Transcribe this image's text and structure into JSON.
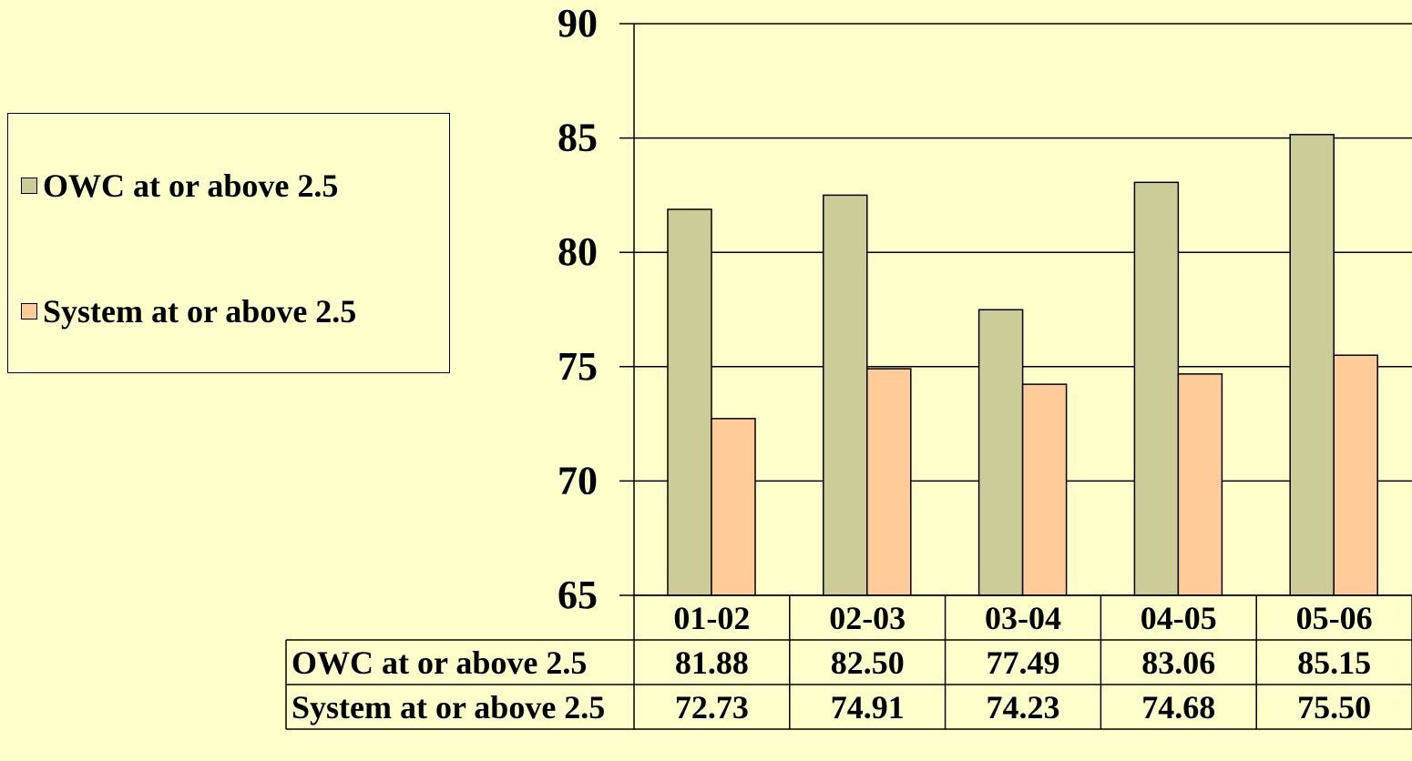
{
  "chart_data": {
    "type": "bar",
    "categories": [
      "01-02",
      "02-03",
      "03-04",
      "04-05",
      "05-06"
    ],
    "series": [
      {
        "name": "OWC at or above 2.5",
        "values": [
          81.88,
          82.5,
          77.49,
          83.06,
          85.15
        ],
        "labels": [
          "81.88",
          "82.50",
          "77.49",
          "83.06",
          "85.15"
        ],
        "color": "#CCCC99"
      },
      {
        "name": "System at or above 2.5",
        "values": [
          72.73,
          74.91,
          74.23,
          74.68,
          75.5
        ],
        "labels": [
          "72.73",
          "74.91",
          "74.23",
          "74.68",
          "75.50"
        ],
        "color": "#FFCC99"
      }
    ],
    "ylim": [
      65,
      90
    ],
    "yticks": [
      "65",
      "70",
      "75",
      "80",
      "85",
      "90"
    ],
    "grid": true,
    "legend_position": "left",
    "data_table": true,
    "title": "",
    "xlabel": "",
    "ylabel": ""
  },
  "colors": {
    "background": "#FFFFCC",
    "owc": "#CCCC99",
    "system": "#FFCC99"
  }
}
